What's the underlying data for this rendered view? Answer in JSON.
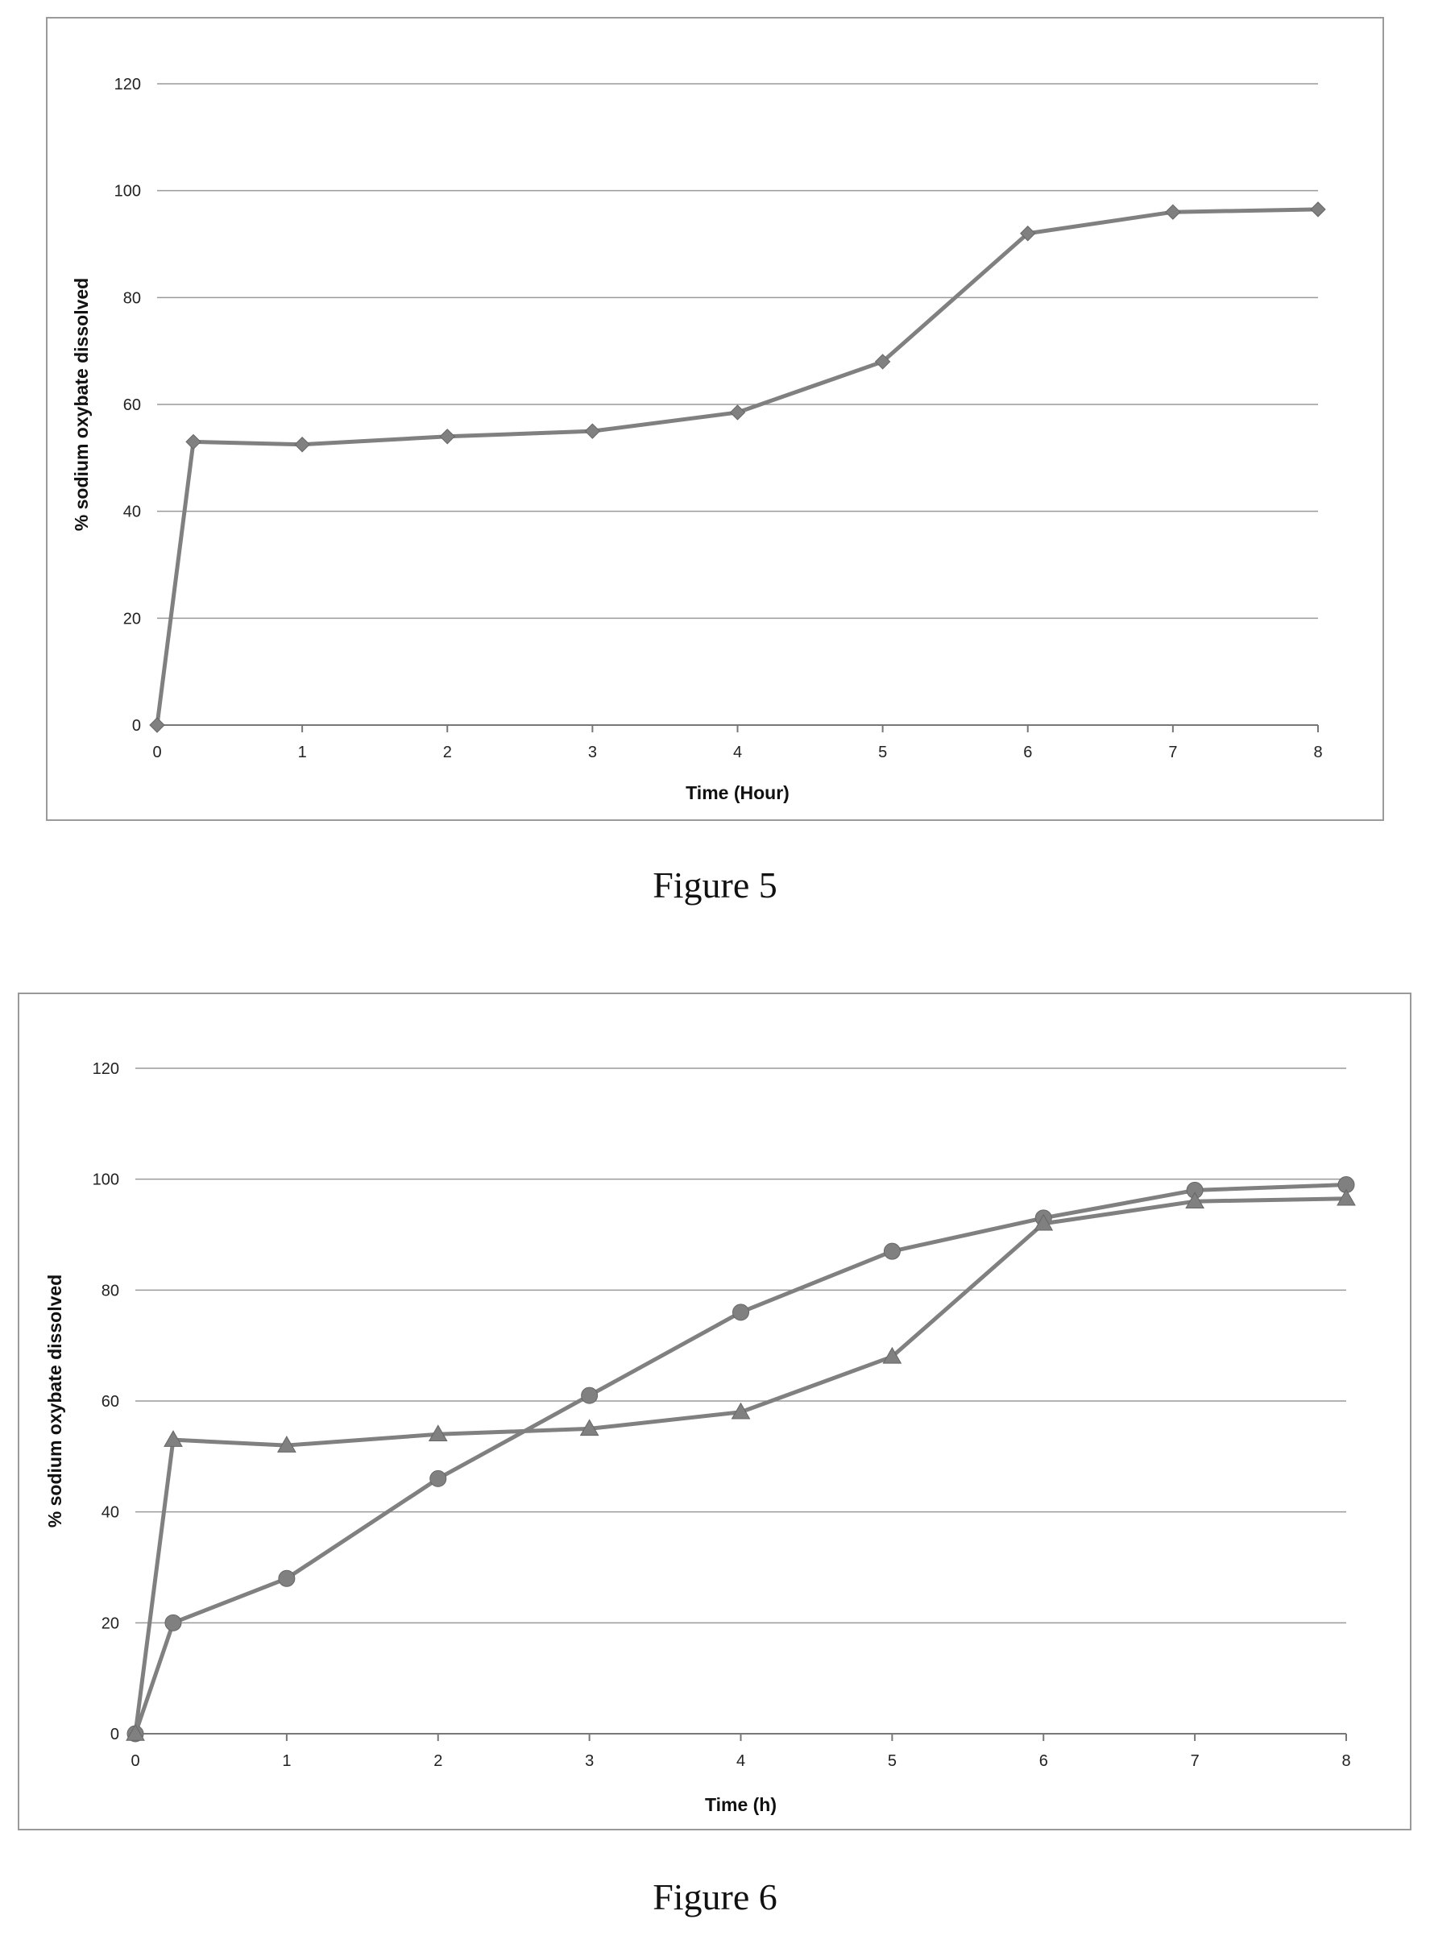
{
  "chart_data": [
    {
      "type": "line",
      "caption": "Figure 5",
      "xlabel": "Time (Hour)",
      "ylabel": "% sodium oxybate dissolved",
      "xlim": [
        0,
        8
      ],
      "ylim": [
        0,
        120
      ],
      "xticks": [
        "0",
        "1",
        "2",
        "3",
        "4",
        "5",
        "6",
        "7",
        "8"
      ],
      "yticks": [
        "0",
        "20",
        "40",
        "60",
        "80",
        "100",
        "120"
      ],
      "grid": "horizontal",
      "series": [
        {
          "marker": "diamond",
          "color": "#808080",
          "x": [
            0,
            0.25,
            1,
            2,
            3,
            4,
            5,
            6,
            7,
            8
          ],
          "y": [
            0,
            53,
            52.5,
            54,
            55,
            58.5,
            68,
            92,
            96,
            96.5
          ]
        }
      ]
    },
    {
      "type": "line",
      "caption": "Figure 6",
      "xlabel": "Time (h)",
      "ylabel": "% sodium oxybate dissolved",
      "xlim": [
        0,
        8
      ],
      "ylim": [
        0,
        120
      ],
      "xticks": [
        "0",
        "1",
        "2",
        "3",
        "4",
        "5",
        "6",
        "7",
        "8"
      ],
      "yticks": [
        "0",
        "20",
        "40",
        "60",
        "80",
        "100",
        "120"
      ],
      "grid": "horizontal",
      "series": [
        {
          "marker": "circle",
          "color": "#808080",
          "x": [
            0,
            0.25,
            1,
            2,
            3,
            4,
            5,
            6,
            7,
            8
          ],
          "y": [
            0,
            20,
            28,
            46,
            61,
            76,
            87,
            93,
            98,
            99
          ]
        },
        {
          "marker": "triangle",
          "color": "#808080",
          "x": [
            0,
            0.25,
            1,
            2,
            3,
            4,
            5,
            6,
            7,
            8
          ],
          "y": [
            0,
            53,
            52,
            54,
            55,
            58,
            68,
            92,
            96,
            96.5
          ]
        }
      ]
    }
  ]
}
